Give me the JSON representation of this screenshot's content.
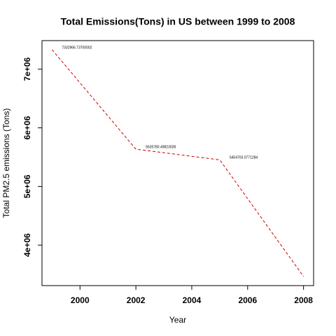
{
  "chart_data": {
    "type": "line",
    "title": "Total Emissions(Tons) in US between 1999 to 2008",
    "x_label": "Year",
    "y_label": "Total PM2.5 emissions (Tons)",
    "x": [
      1999,
      2002,
      2005,
      2008
    ],
    "series": [
      {
        "color": "#cc0000",
        "values": [
          7332966.73700002,
          5635780.49823028,
          5454703.0771284,
          3464205.7
        ],
        "value_labels": [
          "7332966.73700002",
          "5635780.49823028",
          "5454703.0771284",
          null
        ]
      }
    ],
    "xlim": [
      1998.64,
      2008.36
    ],
    "xticks": [
      2000,
      2002,
      2004,
      2006,
      2008
    ],
    "ylim": [
      3309456,
      7487717
    ],
    "yticks": [
      {
        "value": 4000000,
        "label": "4e+06"
      },
      {
        "value": 5000000,
        "label": "5e+06"
      },
      {
        "value": 6000000,
        "label": "6e+06"
      },
      {
        "value": 7000000,
        "label": "7e+06"
      }
    ],
    "line_style": "dashed"
  }
}
